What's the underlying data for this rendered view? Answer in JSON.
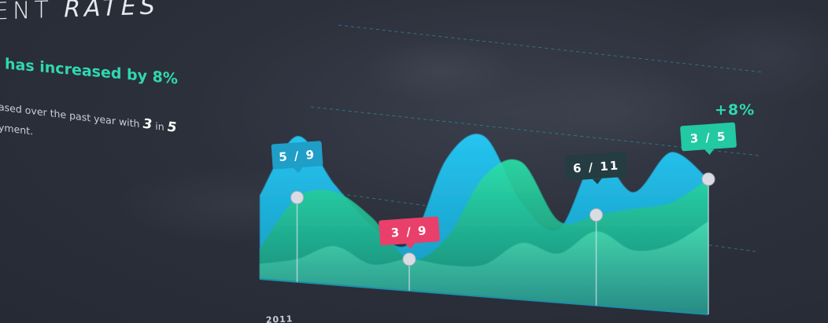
{
  "heading": {
    "part1": "ENT ",
    "part2": "RATES"
  },
  "headline": "has increased by 8%",
  "description": {
    "line1_text": "ased over the past year with ",
    "num1": "3",
    "in_text": " in ",
    "num2": "5",
    "line2": "yment."
  },
  "colors": {
    "blue": "#1ab2e0",
    "green": "#22c9a3",
    "dark_teal": "#1d7a6f",
    "red_badge": "#e8406b",
    "dark_badge": "#243c42",
    "accent": "#2fd8b0"
  },
  "chart_data": {
    "type": "area",
    "title": "",
    "growth_label": "+8%",
    "x_start_label": "2011",
    "annotations": [
      {
        "label": "5 / 9",
        "style": "blue"
      },
      {
        "label": "3 / 9",
        "style": "red"
      },
      {
        "label": "6 / 11",
        "style": "dark"
      },
      {
        "label": "3 / 5",
        "style": "green"
      }
    ],
    "grid": true,
    "series": [
      {
        "values": [
          0.55,
          0.95,
          0.65,
          0.4,
          0.3,
          0.85,
          1.0,
          0.6,
          0.45,
          0.9,
          0.7,
          0.95,
          0.8
        ]
      },
      {
        "values": [
          0.2,
          0.55,
          0.6,
          0.45,
          0.2,
          0.35,
          0.75,
          0.85,
          0.5,
          0.55,
          0.6,
          0.65,
          0.8
        ]
      },
      {
        "values": [
          0.1,
          0.15,
          0.25,
          0.15,
          0.2,
          0.18,
          0.2,
          0.35,
          0.3,
          0.45,
          0.35,
          0.4,
          0.55
        ]
      }
    ]
  }
}
